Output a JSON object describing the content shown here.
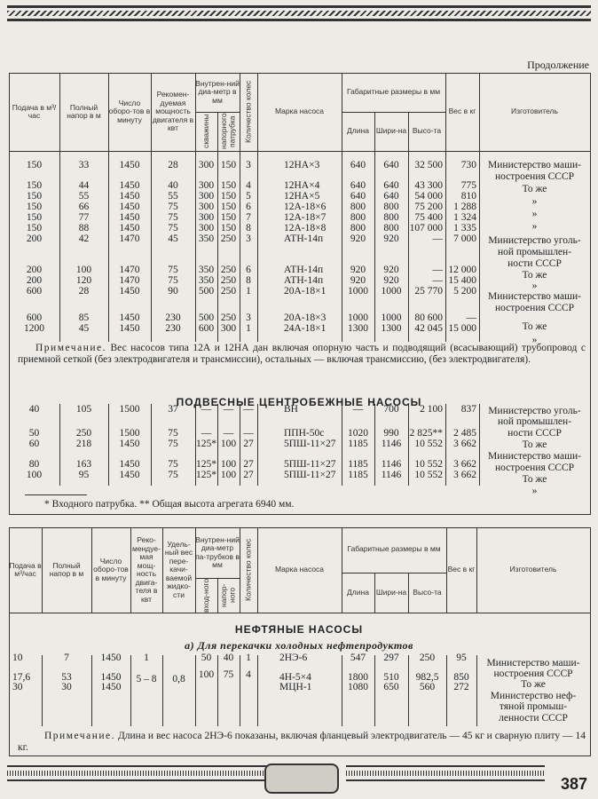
{
  "continuation_label": "Продолжение",
  "page_number": "387",
  "table1": {
    "headers": {
      "flow": "Подача в м³/час",
      "head": "Полный напор в м",
      "rpm": "Число оборо-тов в минуту",
      "power": "Рекомен-дуемая мощность двигателя в квт",
      "diam_group": "Внутрен-ний диа-метр в мм",
      "diam_well": "скважины",
      "diam_outlet": "напорного патрубка",
      "stages": "Количество колес",
      "brand": "Марка насоса",
      "dims_group": "Габаритные размеры в мм",
      "length": "Длина",
      "width": "Шири-на",
      "height": "Высо-та",
      "weight": "Вес в кг",
      "maker": "Изготовитель"
    },
    "rows": [
      [
        "150",
        "33",
        "1450",
        "28",
        "300",
        "150",
        "3",
        "12НА×3",
        "640",
        "640",
        "32 500",
        "730"
      ],
      [
        "150",
        "44",
        "1450",
        "40",
        "300",
        "150",
        "4",
        "12НА×4",
        "640",
        "640",
        "43 300",
        "775"
      ],
      [
        "150",
        "55",
        "1450",
        "55",
        "300",
        "150",
        "5",
        "12НА×5",
        "640",
        "640",
        "54 000",
        "810"
      ],
      [
        "150",
        "66",
        "1450",
        "75",
        "300",
        "150",
        "6",
        "12А-18×6",
        "800",
        "800",
        "75 200",
        "1 288"
      ],
      [
        "150",
        "77",
        "1450",
        "75",
        "300",
        "150",
        "7",
        "12А-18×7",
        "800",
        "800",
        "75 400",
        "1 324"
      ],
      [
        "150",
        "88",
        "1450",
        "75",
        "300",
        "150",
        "8",
        "12А-18×8",
        "800",
        "800",
        "107 000",
        "1 335"
      ],
      [
        "200",
        "42",
        "1470",
        "45",
        "350",
        "250",
        "3",
        "АТН-14п",
        "920",
        "920",
        "—",
        "7 000"
      ],
      [
        "200",
        "100",
        "1470",
        "75",
        "350",
        "250",
        "6",
        "АТН-14п",
        "920",
        "920",
        "—",
        "12 000"
      ],
      [
        "200",
        "120",
        "1470",
        "75",
        "350",
        "250",
        "8",
        "АТН-14п",
        "920",
        "920",
        "—",
        "15 400"
      ],
      [
        "600",
        "28",
        "1450",
        "90",
        "500",
        "250",
        "1",
        "20А-18×1",
        "1000",
        "1000",
        "25 770",
        "5 200"
      ],
      [
        "600",
        "85",
        "1450",
        "230",
        "500",
        "250",
        "3",
        "20А-18×3",
        "1000",
        "1000",
        "80 600",
        "—"
      ],
      [
        "1200",
        "45",
        "1450",
        "230",
        "600",
        "300",
        "1",
        "24А-18×1",
        "1300",
        "1300",
        "42 045",
        "15 000"
      ]
    ],
    "maker_lines": [
      "Министерство маши-",
      "ностроения СССР",
      "То же",
      "»",
      "»",
      "»",
      "Министерство уголь-",
      "ной промышлен-",
      "ности СССР",
      "То же",
      "»",
      "Министерство маши-",
      "ностроения СССР",
      "То же",
      "»"
    ],
    "note_label": "Примечание.",
    "note_text": "Вес насосов типа 12А и 12НА дан включая опорную часть и подводящий (всасывающий) трубопровод с приемной сеткой (без электродвигателя и трансмиссии), остальных — включая трансмиссию, (без электродвигателя)."
  },
  "section2": {
    "title": "ПОДВЕСНЫЕ ЦЕНТРОБЕЖНЫЕ НАСОСЫ",
    "rows": [
      [
        "40",
        "105",
        "1500",
        "37",
        "—",
        "—",
        "—",
        "ВН",
        "—",
        "700",
        "2 100",
        "837"
      ],
      [
        "50",
        "250",
        "1500",
        "75",
        "—",
        "—",
        "—",
        "ППН-50с",
        "1020",
        "990",
        "2 825**",
        "2 485"
      ],
      [
        "60",
        "218",
        "1450",
        "75",
        "125*",
        "100",
        "27",
        "5ПШ-11×27",
        "1185",
        "1146",
        "10 552",
        "3 662"
      ],
      [
        "80",
        "163",
        "1450",
        "75",
        "125*",
        "100",
        "27",
        "5ПШ-11×27",
        "1185",
        "1146",
        "10 552",
        "3 662"
      ],
      [
        "100",
        "95",
        "1450",
        "75",
        "125*",
        "100",
        "27",
        "5ПШ-11×27",
        "1185",
        "1146",
        "10 552",
        "3 662"
      ]
    ],
    "maker_lines": [
      "Министерство уголь-",
      "ной промышлен-",
      "ности СССР",
      "То же",
      "Министерство маши-",
      "ностроения СССР",
      "То же",
      "»"
    ],
    "footnote": "* Входного патрубка. ** Общая высота агрегата 6940 мм."
  },
  "table2": {
    "headers": {
      "flow": "Подача в м³/час",
      "head": "Полный напор в м",
      "rpm": "Число оборо-тов в минуту",
      "power": "Реко-мендуе-мая мощ-ность двига-теля в квт",
      "specific_weight": "Удель-ный вес пере-качи-ваемой жидко-сти",
      "diam_group": "Внутрен-ний диа-метр па-трубков в мм",
      "diam_inlet": "вход-ного",
      "diam_outlet": "напор-ного",
      "stages": "Количество колес",
      "brand": "Марка насоса",
      "dims_group": "Габаритные размеры в мм",
      "length": "Длина",
      "width": "Шири-на",
      "height": "Высо-та",
      "weight": "Вес в кг",
      "maker": "Изготовитель"
    },
    "section_title": "НЕФТЯНЫЕ НАСОСЫ",
    "subsection_title": "а) Для перекачки холодных нефтепродуктов",
    "rows": [
      [
        "10",
        "7",
        "1450",
        "1",
        "",
        "50",
        "40",
        "1",
        "2НЭ-6",
        "547",
        "297",
        "250",
        "95"
      ],
      [
        "17,6",
        "53",
        "1450",
        "5 – 8",
        "0,8",
        "100",
        "75",
        "4",
        "4Н-5×4",
        "1800",
        "510",
        "982,5",
        "850"
      ],
      [
        "30",
        "30",
        "1450",
        "",
        "",
        "",
        "",
        "",
        "МЦН-1",
        "1080",
        "650",
        "560",
        "272"
      ]
    ],
    "maker_lines": [
      "Министерство маши-",
      "ностроения СССР",
      "То же",
      "Министерство неф-",
      "тяной промыш-",
      "ленности СССР"
    ],
    "note_label": "Примечание.",
    "note_text": "Длина и вес насоса 2НЭ-6 показаны, включая фланцевый электродвигатель — 45 кг и сварную плиту — 14 кг."
  }
}
